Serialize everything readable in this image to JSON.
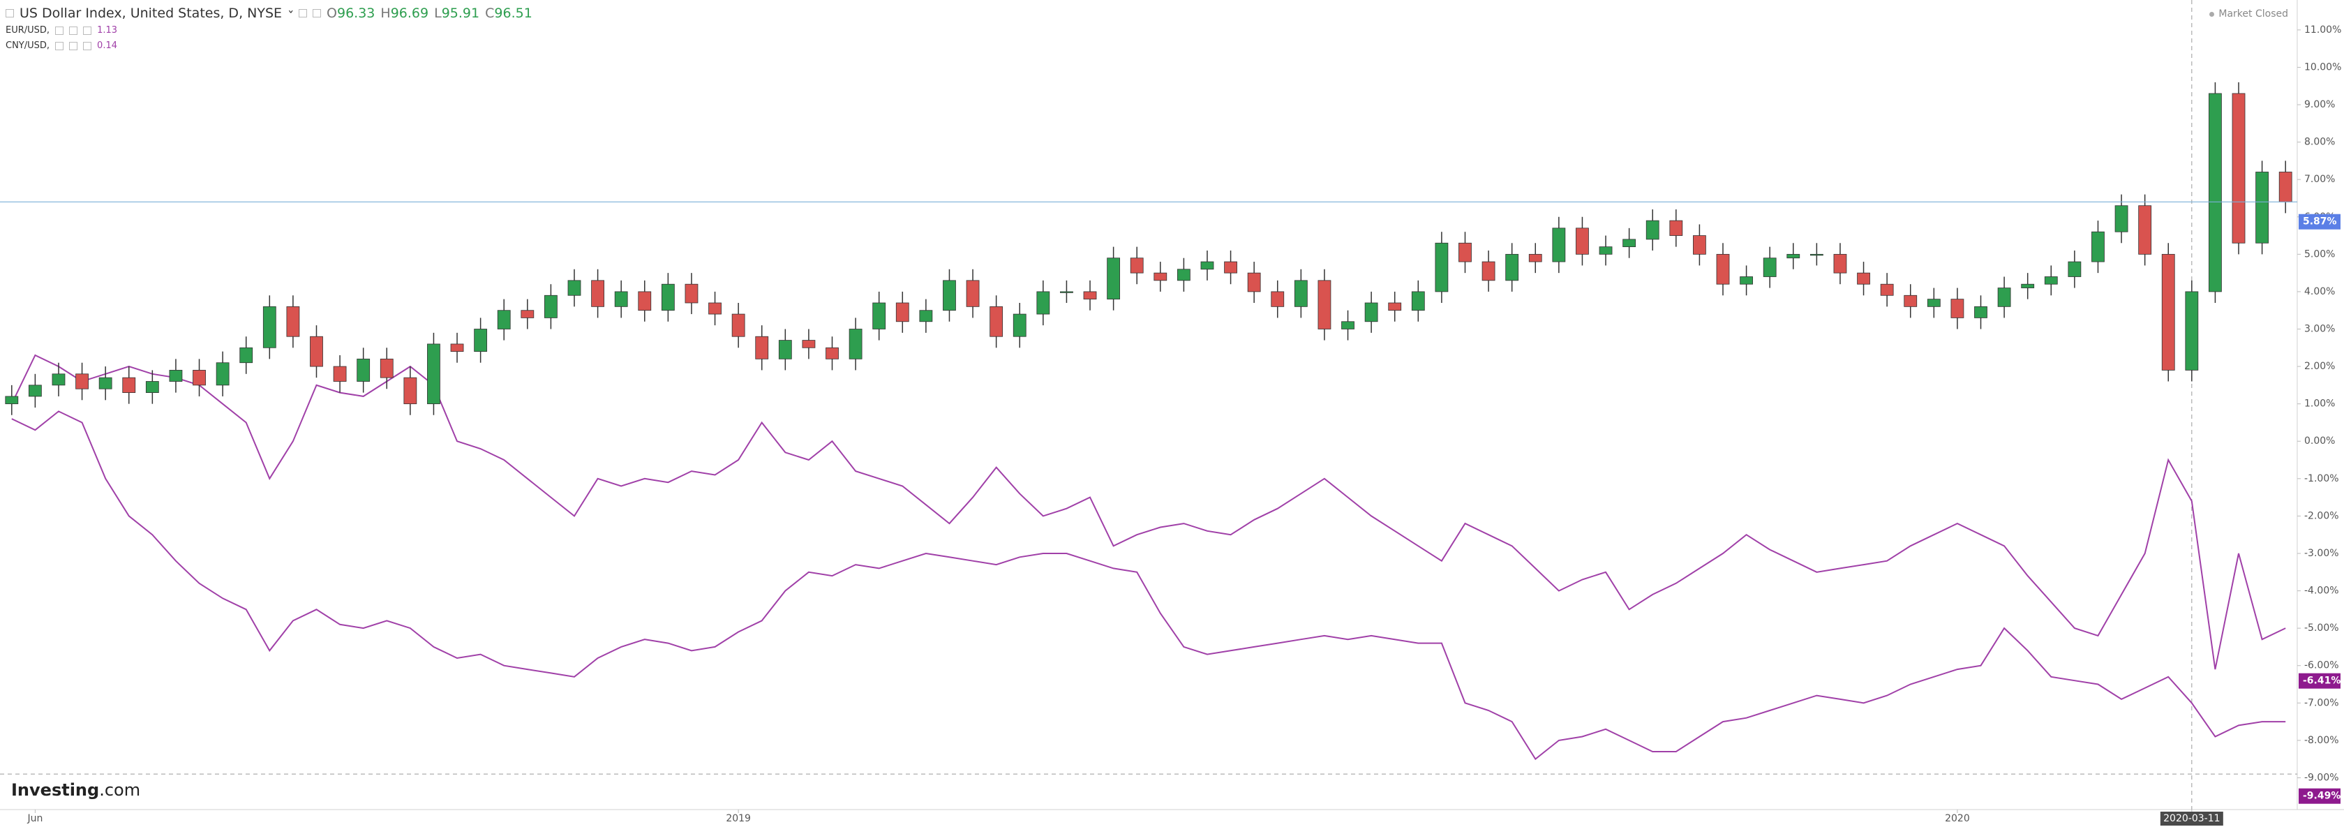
{
  "chart_data": {
    "type": "candlestick",
    "title": "US Dollar Index, United States, D, NYSE",
    "ohlc_legend": [
      {
        "key": "O",
        "value": 96.33
      },
      {
        "key": "H",
        "value": 96.69
      },
      {
        "key": "L",
        "value": 95.91
      },
      {
        "key": "C",
        "value": 96.51
      }
    ],
    "status": "Market Closed",
    "logo": {
      "brand": "Investing",
      "suffix": ".com"
    },
    "up_color": "#2e9e4f",
    "down_color": "#d9534f",
    "categories": [
      null,
      "Jun",
      null,
      null,
      null,
      null,
      null,
      null,
      null,
      null,
      null,
      null,
      null,
      null,
      null,
      null,
      null,
      null,
      null,
      null,
      null,
      null,
      null,
      null,
      null,
      null,
      null,
      null,
      null,
      null,
      null,
      "2019",
      null,
      null,
      null,
      null,
      null,
      null,
      null,
      null,
      null,
      null,
      null,
      null,
      null,
      null,
      null,
      null,
      null,
      null,
      null,
      null,
      null,
      null,
      null,
      null,
      null,
      null,
      null,
      null,
      null,
      null,
      null,
      null,
      null,
      null,
      null,
      null,
      null,
      null,
      null,
      null,
      null,
      null,
      null,
      null,
      null,
      null,
      null,
      null,
      null,
      null,
      null,
      "2020",
      null,
      null,
      null,
      null,
      null,
      null,
      null,
      null,
      null,
      "2020-03-11",
      null,
      null,
      null,
      null
    ],
    "open": [
      1.0,
      1.2,
      1.5,
      1.8,
      1.4,
      1.7,
      1.3,
      1.6,
      1.9,
      1.5,
      2.1,
      2.5,
      3.6,
      2.8,
      2.0,
      1.6,
      2.2,
      1.7,
      1.0,
      2.6,
      2.4,
      3.0,
      3.5,
      3.3,
      3.9,
      4.3,
      3.6,
      4.0,
      3.5,
      4.2,
      3.7,
      3.4,
      2.8,
      2.2,
      2.7,
      2.5,
      2.2,
      3.0,
      3.7,
      3.2,
      3.5,
      4.3,
      3.6,
      2.8,
      3.4,
      4.0,
      4.0,
      3.8,
      4.9,
      4.5,
      4.3,
      4.6,
      4.8,
      4.5,
      4.0,
      3.6,
      4.3,
      3.0,
      3.2,
      3.7,
      3.5,
      4.0,
      5.3,
      4.8,
      4.3,
      5.0,
      4.8,
      5.7,
      5.0,
      5.2,
      5.4,
      5.9,
      5.5,
      5.0,
      4.2,
      4.4,
      4.9,
      5.0,
      5.0,
      4.5,
      4.2,
      3.9,
      3.6,
      3.8,
      3.3,
      3.6,
      4.1,
      4.2,
      4.4,
      4.8,
      5.6,
      6.3,
      5.0,
      1.9,
      4.0,
      9.3,
      5.3,
      7.2
    ],
    "high": [
      1.5,
      1.8,
      2.1,
      2.1,
      2.0,
      2.0,
      1.9,
      2.2,
      2.2,
      2.4,
      2.8,
      3.9,
      3.9,
      3.1,
      2.3,
      2.5,
      2.5,
      2.0,
      2.9,
      2.9,
      3.3,
      3.8,
      3.8,
      4.2,
      4.6,
      4.6,
      4.3,
      4.3,
      4.5,
      4.5,
      4.0,
      3.7,
      3.1,
      3.0,
      3.0,
      2.8,
      3.3,
      4.0,
      4.0,
      3.8,
      4.6,
      4.6,
      3.9,
      3.7,
      4.3,
      4.3,
      4.3,
      5.2,
      5.2,
      4.8,
      4.9,
      5.1,
      5.1,
      4.8,
      4.3,
      4.6,
      4.6,
      3.5,
      4.0,
      4.0,
      4.3,
      5.6,
      5.6,
      5.1,
      5.3,
      5.3,
      6.0,
      6.0,
      5.5,
      5.7,
      6.2,
      6.2,
      5.8,
      5.3,
      4.7,
      5.2,
      5.3,
      5.3,
      5.3,
      4.8,
      4.5,
      4.2,
      4.1,
      4.1,
      3.9,
      4.4,
      4.5,
      4.7,
      5.1,
      5.9,
      6.6,
      6.6,
      5.3,
      4.3,
      9.6,
      9.6,
      7.5,
      7.5
    ],
    "low": [
      0.7,
      0.9,
      1.2,
      1.1,
      1.1,
      1.0,
      1.0,
      1.3,
      1.2,
      1.2,
      1.8,
      2.2,
      2.5,
      1.7,
      1.3,
      1.3,
      1.4,
      0.7,
      0.7,
      2.1,
      2.1,
      2.7,
      3.0,
      3.0,
      3.6,
      3.3,
      3.3,
      3.2,
      3.2,
      3.4,
      3.1,
      2.5,
      1.9,
      1.9,
      2.2,
      1.9,
      1.9,
      2.7,
      2.9,
      2.9,
      3.2,
      3.3,
      2.5,
      2.5,
      3.1,
      3.7,
      3.5,
      3.5,
      4.2,
      4.0,
      4.0,
      4.3,
      4.2,
      3.7,
      3.3,
      3.3,
      2.7,
      2.7,
      2.9,
      3.2,
      3.2,
      3.7,
      4.5,
      4.0,
      4.0,
      4.5,
      4.5,
      4.7,
      4.7,
      4.9,
      5.1,
      5.2,
      4.7,
      3.9,
      3.9,
      4.1,
      4.6,
      4.7,
      4.2,
      3.9,
      3.6,
      3.3,
      3.3,
      3.0,
      3.0,
      3.3,
      3.8,
      3.9,
      4.1,
      4.5,
      5.3,
      4.7,
      1.6,
      1.6,
      3.7,
      5.0,
      5.0,
      6.1
    ],
    "close": [
      1.2,
      1.5,
      1.8,
      1.4,
      1.7,
      1.3,
      1.6,
      1.9,
      1.5,
      2.1,
      2.5,
      3.6,
      2.8,
      2.0,
      1.6,
      2.2,
      1.7,
      1.0,
      2.6,
      2.4,
      3.0,
      3.5,
      3.3,
      3.9,
      4.3,
      3.6,
      4.0,
      3.5,
      4.2,
      3.7,
      3.4,
      2.8,
      2.2,
      2.7,
      2.5,
      2.2,
      3.0,
      3.7,
      3.2,
      3.5,
      4.3,
      3.6,
      2.8,
      3.4,
      4.0,
      4.0,
      3.8,
      4.9,
      4.5,
      4.3,
      4.6,
      4.8,
      4.5,
      4.0,
      3.6,
      4.3,
      3.0,
      3.2,
      3.7,
      3.5,
      4.0,
      5.3,
      4.8,
      4.3,
      5.0,
      4.8,
      5.7,
      5.0,
      5.2,
      5.4,
      5.9,
      5.5,
      5.0,
      4.2,
      4.4,
      4.9,
      5.0,
      5.0,
      4.5,
      4.2,
      3.9,
      3.6,
      3.8,
      3.3,
      3.6,
      4.1,
      4.2,
      4.4,
      4.8,
      5.6,
      6.3,
      5.0,
      1.9,
      4.0,
      9.3,
      5.3,
      7.2,
      6.4
    ],
    "overlays": [
      {
        "name": "EUR/USD,",
        "last": 1.13,
        "color": "#a040a8",
        "values": [
          1.0,
          2.3,
          2.0,
          1.6,
          1.8,
          2.0,
          1.8,
          1.7,
          1.5,
          1.0,
          0.5,
          -1.0,
          0.0,
          1.5,
          1.3,
          1.2,
          1.6,
          2.0,
          1.5,
          0.0,
          -0.2,
          -0.5,
          -1.0,
          -1.5,
          -2.0,
          -1.0,
          -1.2,
          -1.0,
          -1.1,
          -0.8,
          -0.9,
          -0.5,
          0.5,
          -0.3,
          -0.5,
          0.0,
          -0.8,
          -1.0,
          -1.2,
          -1.7,
          -2.2,
          -1.5,
          -0.7,
          -1.4,
          -2.0,
          -1.8,
          -1.5,
          -2.8,
          -2.5,
          -2.3,
          -2.2,
          -2.4,
          -2.5,
          -2.1,
          -1.8,
          -1.4,
          -1.0,
          -1.5,
          -2.0,
          -2.4,
          -2.8,
          -3.2,
          -2.2,
          -2.5,
          -2.8,
          -3.4,
          -4.0,
          -3.7,
          -3.5,
          -4.5,
          -4.1,
          -3.8,
          -3.4,
          -3.0,
          -2.5,
          -2.9,
          -3.2,
          -3.5,
          -3.4,
          -3.3,
          -3.2,
          -2.8,
          -2.5,
          -2.2,
          -2.5,
          -2.8,
          -3.6,
          -4.3,
          -5.0,
          -5.2,
          -4.1,
          -3.0,
          -0.5,
          -1.6,
          -6.1,
          -3.0,
          -5.3,
          -5.0
        ]
      },
      {
        "name": "CNY/USD,",
        "last": 0.14,
        "color": "#a040a8",
        "values": [
          0.6,
          0.3,
          0.8,
          0.5,
          -1.0,
          -2.0,
          -2.5,
          -3.2,
          -3.8,
          -4.2,
          -4.5,
          -5.6,
          -4.8,
          -4.5,
          -4.9,
          -5.0,
          -4.8,
          -5.0,
          -5.5,
          -5.8,
          -5.7,
          -6.0,
          -6.1,
          -6.2,
          -6.3,
          -5.8,
          -5.5,
          -5.3,
          -5.4,
          -5.6,
          -5.5,
          -5.1,
          -4.8,
          -4.0,
          -3.5,
          -3.6,
          -3.3,
          -3.4,
          -3.2,
          -3.0,
          -3.1,
          -3.2,
          -3.3,
          -3.1,
          -3.0,
          -3.0,
          -3.2,
          -3.4,
          -3.5,
          -4.6,
          -5.5,
          -5.7,
          -5.6,
          -5.5,
          -5.4,
          -5.3,
          -5.2,
          -5.3,
          -5.2,
          -5.3,
          -5.4,
          -5.4,
          -7.0,
          -7.2,
          -7.5,
          -8.5,
          -8.0,
          -7.9,
          -7.7,
          -8.0,
          -8.3,
          -8.3,
          -7.9,
          -7.5,
          -7.4,
          -7.2,
          -7.0,
          -6.8,
          -6.9,
          -7.0,
          -6.8,
          -6.5,
          -6.3,
          -6.1,
          -6.0,
          -5.0,
          -5.6,
          -6.3,
          -6.4,
          -6.5,
          -6.9,
          -6.6,
          -6.3,
          -7.0,
          -7.9,
          -7.6,
          -7.5,
          -7.5
        ]
      }
    ],
    "ylim": [
      -9.85,
      11.8
    ],
    "yticks": [
      {
        "value": -9,
        "label": "-9.00%"
      },
      {
        "value": -8,
        "label": "-8.00%"
      },
      {
        "value": -7,
        "label": "-7.00%"
      },
      {
        "value": -6,
        "label": "-6.00%"
      },
      {
        "value": -5,
        "label": "-5.00%"
      },
      {
        "value": -4,
        "label": "-4.00%"
      },
      {
        "value": -3,
        "label": "-3.00%"
      },
      {
        "value": -2,
        "label": "-2.00%"
      },
      {
        "value": -1,
        "label": "-1.00%"
      },
      {
        "value": 0,
        "label": "0.00%"
      },
      {
        "value": 1,
        "label": "1.00%"
      },
      {
        "value": 2,
        "label": "2.00%"
      },
      {
        "value": 3,
        "label": "3.00%"
      },
      {
        "value": 4,
        "label": "4.00%"
      },
      {
        "value": 5,
        "label": "5.00%"
      },
      {
        "value": 6,
        "label": "6.00%"
      },
      {
        "value": 7,
        "label": "7.00%"
      },
      {
        "value": 8,
        "label": "8.00%"
      },
      {
        "value": 9,
        "label": "9.00%"
      },
      {
        "value": 10,
        "label": "10.00%"
      },
      {
        "value": 11,
        "label": "11.00%"
      }
    ],
    "axis_labels": [
      {
        "value": 5.87,
        "label": "5.87%",
        "color": "#5b7fe6"
      },
      {
        "value": -6.41,
        "label": "-6.41%",
        "color": "#8e1a8e"
      },
      {
        "value": -9.49,
        "label": "-9.49%",
        "color": "#8e1a8e"
      }
    ],
    "crosshair_y": -8.9,
    "grid": false
  }
}
